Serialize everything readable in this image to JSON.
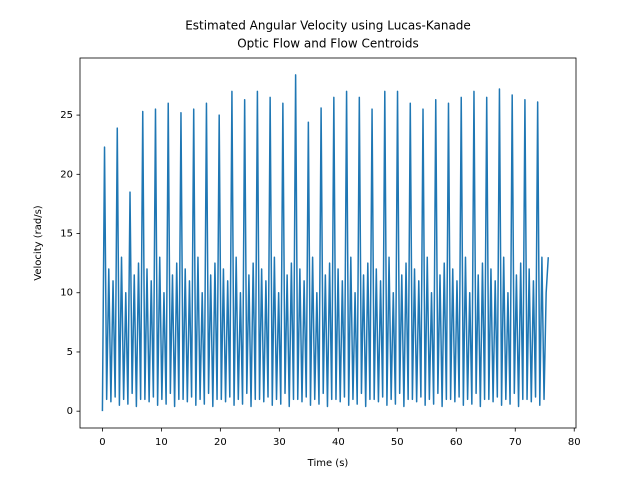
{
  "chart_data": {
    "type": "line",
    "title": [
      "Estimated Angular Velocity using Lucas-Kanade",
      "Optic Flow and Flow Centroids"
    ],
    "x_label": "Time (s)",
    "y_label": "Velocity (rad/s)",
    "xlim": [
      -3.8,
      80.3
    ],
    "ylim": [
      -1.42,
      29.82
    ],
    "xticks": [
      0,
      10,
      20,
      30,
      40,
      50,
      60,
      70,
      80
    ],
    "yticks": [
      0,
      5,
      10,
      15,
      20,
      25
    ],
    "grid": false,
    "series": [
      {
        "name": "Velocity",
        "color": "#1f77b4",
        "x": [
          0,
          0.36,
          0.72,
          1.08,
          1.44,
          1.8,
          2.16,
          2.52,
          2.88,
          3.24,
          3.6,
          3.96,
          4.32,
          4.68,
          5.04,
          5.4,
          5.76,
          6.12,
          6.48,
          6.84,
          7.2,
          7.56,
          7.92,
          8.28,
          8.64,
          9,
          9.36,
          9.72,
          10.08,
          10.44,
          10.8,
          11.16,
          11.52,
          11.88,
          12.24,
          12.6,
          12.96,
          13.32,
          13.68,
          14.04,
          14.4,
          14.76,
          15.12,
          15.48,
          15.84,
          16.2,
          16.56,
          16.92,
          17.28,
          17.64,
          18,
          18.36,
          18.72,
          19.08,
          19.44,
          19.8,
          20.16,
          20.52,
          20.88,
          21.24,
          21.6,
          21.96,
          22.32,
          22.68,
          23.04,
          23.4,
          23.76,
          24.12,
          24.48,
          24.84,
          25.2,
          25.56,
          25.92,
          26.28,
          26.64,
          27,
          27.36,
          27.72,
          28.08,
          28.44,
          28.8,
          29.16,
          29.52,
          29.88,
          30.24,
          30.6,
          30.96,
          31.32,
          31.68,
          32.04,
          32.4,
          32.76,
          33.12,
          33.48,
          33.84,
          34.2,
          34.56,
          34.92,
          35.28,
          35.64,
          36,
          36.36,
          36.72,
          37.08,
          37.44,
          37.8,
          38.16,
          38.52,
          38.88,
          39.24,
          39.6,
          39.96,
          40.32,
          40.68,
          41.04,
          41.4,
          41.76,
          42.12,
          42.48,
          42.84,
          43.2,
          43.56,
          43.92,
          44.28,
          44.64,
          45,
          45.36,
          45.72,
          46.08,
          46.44,
          46.8,
          47.16,
          47.52,
          47.88,
          48.24,
          48.6,
          48.96,
          49.32,
          49.68,
          50.04,
          50.4,
          50.76,
          51.12,
          51.48,
          51.84,
          52.2,
          52.56,
          52.92,
          53.28,
          53.64,
          54,
          54.36,
          54.72,
          55.08,
          55.44,
          55.8,
          56.16,
          56.52,
          56.88,
          57.24,
          57.6,
          57.96,
          58.32,
          58.68,
          59.04,
          59.4,
          59.76,
          60.12,
          60.48,
          60.84,
          61.2,
          61.56,
          61.92,
          62.28,
          62.64,
          63,
          63.36,
          63.72,
          64.08,
          64.44,
          64.8,
          65.16,
          65.52,
          65.88,
          66.24,
          66.6,
          66.96,
          67.32,
          67.68,
          68.04,
          68.4,
          68.76,
          69.12,
          69.48,
          69.84,
          70.2,
          70.56,
          70.92,
          71.28,
          71.64,
          72,
          72.36,
          72.72,
          73.08,
          73.44,
          73.8,
          74.16,
          74.52,
          74.88,
          75.24,
          75.6
        ],
        "values": [
          0,
          22.3,
          1,
          12,
          0.8,
          11,
          1.2,
          23.9,
          0.5,
          13,
          1,
          10,
          0.6,
          18.5,
          1.5,
          11.5,
          0.4,
          12.5,
          1,
          25.3,
          1,
          12,
          0.8,
          11,
          1.2,
          25.5,
          0.5,
          13,
          1,
          10,
          0.6,
          26,
          1.5,
          11.5,
          0.4,
          12.5,
          1,
          25.2,
          1,
          12,
          0.8,
          11,
          1.2,
          25.5,
          0.5,
          13,
          1,
          10,
          0.6,
          26,
          1.5,
          11.5,
          0.4,
          12.5,
          1,
          25,
          1,
          12,
          0.8,
          11,
          1.2,
          27,
          0.5,
          13,
          1,
          10,
          0.6,
          26.3,
          1.5,
          11.5,
          0.4,
          12.5,
          1,
          27,
          1,
          12,
          0.8,
          11,
          1.2,
          26.5,
          0.5,
          13,
          1,
          10,
          0.6,
          26,
          1.5,
          11.5,
          0.4,
          12.5,
          1,
          28.4,
          1,
          12,
          0.8,
          11,
          1.2,
          24.4,
          0.5,
          13,
          1,
          10,
          0.6,
          25.6,
          1.5,
          11.5,
          0.4,
          12.5,
          1,
          26.5,
          1,
          12,
          0.8,
          11,
          1.2,
          27,
          0.5,
          13,
          1,
          10,
          0.6,
          26.5,
          1.5,
          11.5,
          0.4,
          12.5,
          1,
          25.5,
          1,
          12,
          0.8,
          11,
          1.2,
          27,
          0.5,
          13,
          1,
          10,
          0.6,
          27,
          1.5,
          11.5,
          0.4,
          12.5,
          1,
          26,
          1,
          12,
          0.8,
          11,
          1.2,
          25.5,
          0.5,
          13,
          1,
          10,
          0.6,
          26.3,
          1.5,
          11.5,
          0.4,
          12.5,
          1,
          26,
          1,
          12,
          0.8,
          11,
          1.2,
          26.5,
          0.5,
          13,
          1,
          10,
          0.6,
          27,
          1.5,
          11.5,
          0.4,
          12.5,
          1,
          26.5,
          1,
          12,
          0.8,
          11,
          1.2,
          27.2,
          0.5,
          13,
          1,
          10,
          0.6,
          26.7,
          1.5,
          11.5,
          0.4,
          12.5,
          1,
          26.3,
          1,
          12,
          0.8,
          11,
          1.2,
          26.1,
          0.5,
          13,
          1,
          10,
          13
        ]
      }
    ]
  }
}
